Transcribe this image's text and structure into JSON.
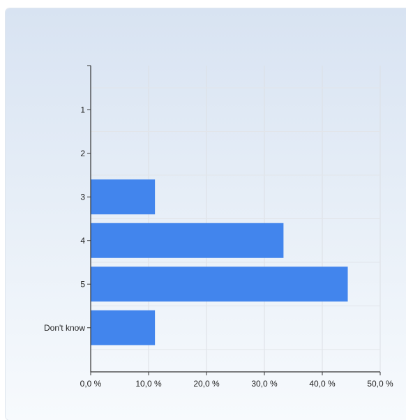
{
  "chart_data": {
    "type": "bar",
    "orientation": "horizontal",
    "title": "",
    "xlabel": "",
    "ylabel": "",
    "categories": [
      "1",
      "2",
      "3",
      "4",
      "5",
      "Don't know"
    ],
    "values": [
      0,
      0,
      11.1,
      33.3,
      44.4,
      11.1
    ],
    "xlim": [
      0,
      50
    ],
    "x_ticks": [
      0,
      10,
      20,
      30,
      40,
      50
    ],
    "x_tick_labels": [
      "0,0 %",
      "10,0 %",
      "20,0 %",
      "30,0 %",
      "40,0 %",
      "50,0 %"
    ],
    "grid": true,
    "legend": "none",
    "bar_color": "#4285ed"
  }
}
